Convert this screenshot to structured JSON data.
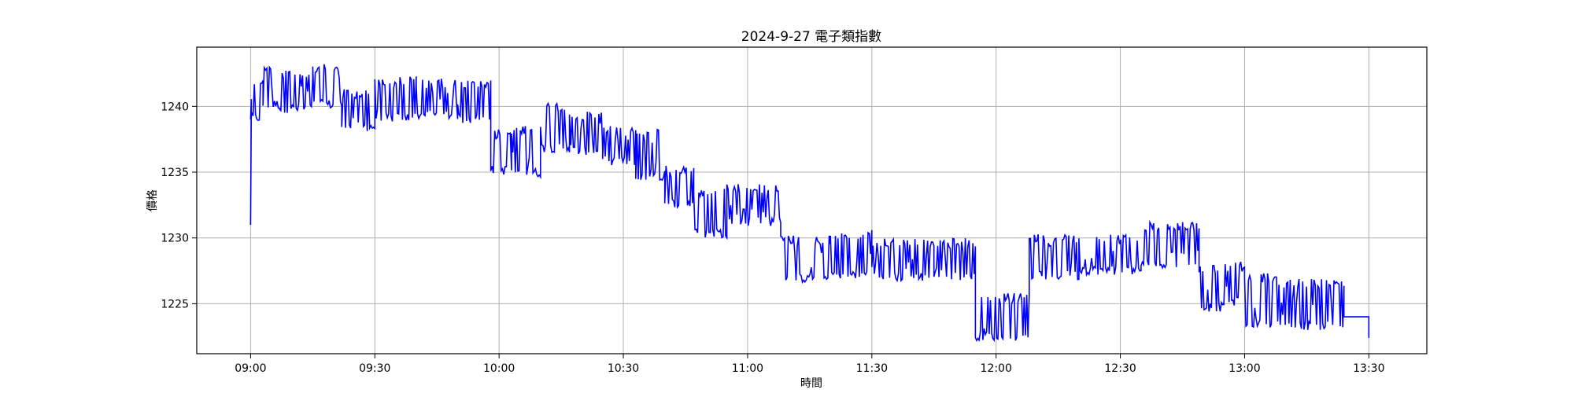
{
  "chart_data": {
    "type": "line",
    "title": "2024-9-27 電子類指數",
    "xlabel": "時間",
    "ylabel": "價格",
    "x_ticks": [
      "09:00",
      "09:30",
      "10:00",
      "10:30",
      "11:00",
      "11:30",
      "12:00",
      "12:30",
      "13:00",
      "13:30"
    ],
    "y_ticks": [
      1225,
      1230,
      1235,
      1240
    ],
    "xlim": [
      "08:47",
      "13:44"
    ],
    "ylim": [
      1221.2,
      1244.5
    ],
    "grid": true,
    "colors": {
      "line": "#0000ff",
      "grid": "#b0b0b0"
    },
    "series": [
      {
        "color": "#0000ff",
        "segments": [
          {
            "start": "09:00",
            "end": "09:03",
            "low": 1238.8,
            "high": 1242.3
          },
          {
            "start": "09:03",
            "end": "09:07",
            "low": 1239.8,
            "high": 1243.2
          },
          {
            "start": "09:07",
            "end": "09:15",
            "low": 1239.5,
            "high": 1242.8
          },
          {
            "start": "09:15",
            "end": "09:22",
            "low": 1239.8,
            "high": 1243.2
          },
          {
            "start": "09:22",
            "end": "09:30",
            "low": 1238.1,
            "high": 1241.3
          },
          {
            "start": "09:30",
            "end": "09:40",
            "low": 1238.8,
            "high": 1242.3
          },
          {
            "start": "09:40",
            "end": "09:50",
            "low": 1239.0,
            "high": 1242.1
          },
          {
            "start": "09:50",
            "end": "09:58",
            "low": 1238.7,
            "high": 1242.0
          },
          {
            "start": "09:58",
            "end": "10:03",
            "low": 1234.8,
            "high": 1238.3
          },
          {
            "start": "10:03",
            "end": "10:10",
            "low": 1234.6,
            "high": 1238.5
          },
          {
            "start": "10:10",
            "end": "10:17",
            "low": 1236.5,
            "high": 1240.3
          },
          {
            "start": "10:17",
            "end": "10:25",
            "low": 1236.3,
            "high": 1239.6
          },
          {
            "start": "10:25",
            "end": "10:33",
            "low": 1235.5,
            "high": 1238.6
          },
          {
            "start": "10:33",
            "end": "10:40",
            "low": 1234.2,
            "high": 1238.3
          },
          {
            "start": "10:40",
            "end": "10:47",
            "low": 1232.3,
            "high": 1235.5
          },
          {
            "start": "10:47",
            "end": "10:55",
            "low": 1230.0,
            "high": 1233.8
          },
          {
            "start": "10:55",
            "end": "11:08",
            "low": 1230.9,
            "high": 1234.1
          },
          {
            "start": "11:08",
            "end": "11:20",
            "low": 1226.6,
            "high": 1230.2
          },
          {
            "start": "11:20",
            "end": "11:30",
            "low": 1226.9,
            "high": 1230.6
          },
          {
            "start": "11:30",
            "end": "11:45",
            "low": 1226.7,
            "high": 1230.0
          },
          {
            "start": "11:45",
            "end": "11:55",
            "low": 1226.8,
            "high": 1230.0
          },
          {
            "start": "11:55",
            "end": "12:08",
            "low": 1222.2,
            "high": 1225.8
          },
          {
            "start": "12:08",
            "end": "12:20",
            "low": 1226.8,
            "high": 1230.3
          },
          {
            "start": "12:20",
            "end": "12:35",
            "low": 1227.2,
            "high": 1230.4
          },
          {
            "start": "12:35",
            "end": "12:49",
            "low": 1227.7,
            "high": 1231.2
          },
          {
            "start": "12:49",
            "end": "12:55",
            "low": 1224.4,
            "high": 1228.0
          },
          {
            "start": "12:55",
            "end": "13:00",
            "low": 1224.8,
            "high": 1228.2
          },
          {
            "start": "13:00",
            "end": "13:08",
            "low": 1223.2,
            "high": 1227.3
          },
          {
            "start": "13:08",
            "end": "13:24",
            "low": 1223.0,
            "high": 1226.9
          }
        ],
        "open": 1231.0,
        "close_flat": {
          "start": "13:24",
          "end": "13:30",
          "value": 1224.0
        },
        "final": 1222.4
      }
    ]
  }
}
